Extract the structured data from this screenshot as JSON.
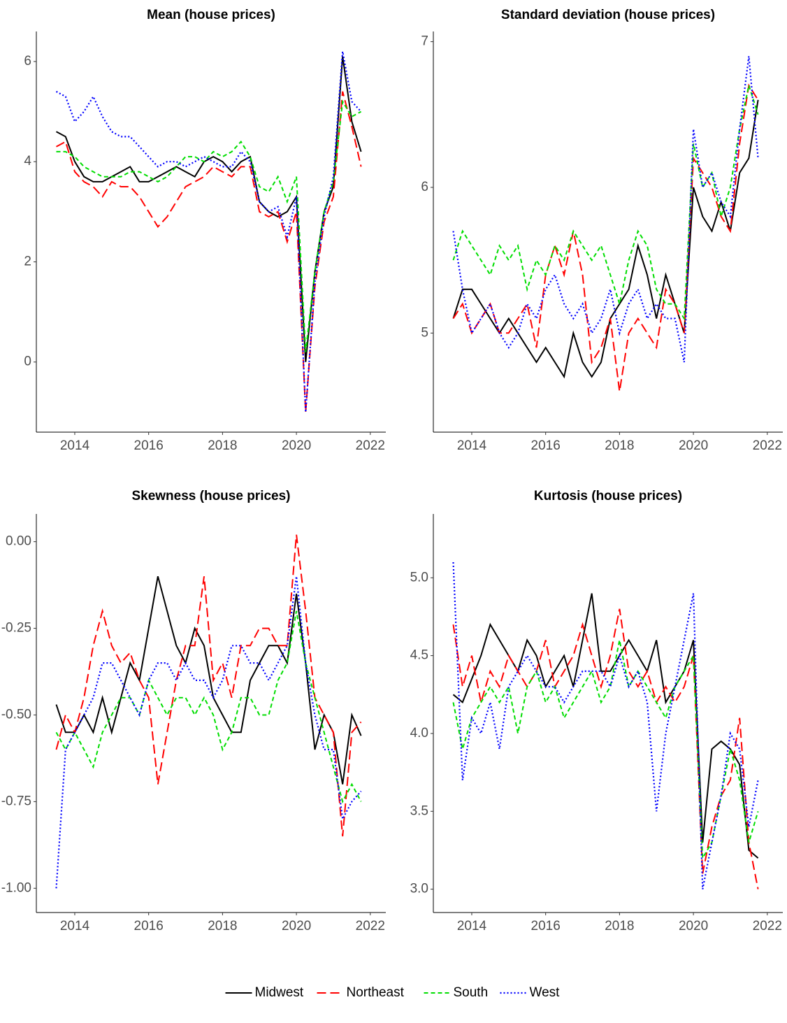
{
  "chart_data": [
    {
      "type": "line",
      "title": "Mean (house prices)",
      "x": [
        2013.5,
        2013.75,
        2014,
        2014.25,
        2014.5,
        2014.75,
        2015,
        2015.25,
        2015.5,
        2015.75,
        2016,
        2016.25,
        2016.5,
        2016.75,
        2017,
        2017.25,
        2017.5,
        2017.75,
        2018,
        2018.25,
        2018.5,
        2018.75,
        2019,
        2019.25,
        2019.5,
        2019.75,
        2020,
        2020.25,
        2020.5,
        2020.75,
        2021,
        2021.25,
        2021.5,
        2021.75
      ],
      "xlim": [
        2012.96,
        2022.42
      ],
      "xticks": [
        2014,
        2016,
        2018,
        2020,
        2022
      ],
      "ylim": [
        -1.4,
        6.6
      ],
      "yticks": [
        0,
        2,
        4,
        6
      ],
      "series": [
        {
          "values": [
            4.6,
            4.5,
            4.0,
            3.7,
            3.6,
            3.6,
            3.7,
            3.8,
            3.9,
            3.6,
            3.6,
            3.7,
            3.8,
            3.9,
            3.8,
            3.7,
            4.0,
            4.1,
            4.0,
            3.8,
            4.0,
            4.1,
            3.2,
            3.0,
            2.9,
            3.0,
            3.3,
            0.0,
            1.8,
            3.0,
            3.5,
            6.1,
            4.8,
            4.2
          ]
        },
        {
          "values": [
            4.3,
            4.4,
            3.8,
            3.6,
            3.5,
            3.3,
            3.6,
            3.5,
            3.5,
            3.3,
            3.0,
            2.7,
            2.9,
            3.2,
            3.5,
            3.6,
            3.7,
            3.9,
            3.8,
            3.7,
            3.9,
            3.9,
            3.0,
            2.9,
            3.0,
            2.4,
            3.0,
            -1.0,
            1.5,
            2.8,
            3.3,
            5.4,
            4.7,
            3.9
          ]
        },
        {
          "values": [
            4.2,
            4.2,
            4.1,
            3.9,
            3.8,
            3.7,
            3.7,
            3.7,
            3.8,
            3.8,
            3.7,
            3.6,
            3.7,
            3.9,
            4.1,
            4.1,
            4.0,
            4.2,
            4.1,
            4.2,
            4.4,
            4.1,
            3.5,
            3.4,
            3.7,
            3.2,
            3.7,
            0.2,
            1.8,
            3.0,
            3.6,
            5.2,
            4.9,
            5.0
          ]
        },
        {
          "values": [
            5.4,
            5.3,
            4.8,
            5.0,
            5.3,
            4.9,
            4.6,
            4.5,
            4.5,
            4.3,
            4.1,
            3.9,
            4.0,
            4.0,
            3.9,
            4.0,
            4.1,
            4.0,
            3.9,
            3.9,
            4.2,
            4.0,
            3.2,
            3.0,
            3.1,
            2.5,
            3.3,
            -1.0,
            1.6,
            2.9,
            3.7,
            6.2,
            5.2,
            5.0
          ]
        }
      ]
    },
    {
      "type": "line",
      "title": "Standard deviation (house prices)",
      "x": [
        2013.5,
        2013.75,
        2014,
        2014.25,
        2014.5,
        2014.75,
        2015,
        2015.25,
        2015.5,
        2015.75,
        2016,
        2016.25,
        2016.5,
        2016.75,
        2017,
        2017.25,
        2017.5,
        2017.75,
        2018,
        2018.25,
        2018.5,
        2018.75,
        2019,
        2019.25,
        2019.5,
        2019.75,
        2020,
        2020.25,
        2020.5,
        2020.75,
        2021,
        2021.25,
        2021.5,
        2021.75
      ],
      "xlim": [
        2012.96,
        2022.42
      ],
      "xticks": [
        2014,
        2016,
        2018,
        2020,
        2022
      ],
      "ylim": [
        4.32,
        7.07
      ],
      "yticks": [
        5,
        6,
        7
      ],
      "series": [
        {
          "values": [
            5.1,
            5.3,
            5.3,
            5.2,
            5.1,
            5.0,
            5.1,
            5.0,
            4.9,
            4.8,
            4.9,
            4.8,
            4.7,
            5.0,
            4.8,
            4.7,
            4.8,
            5.1,
            5.2,
            5.3,
            5.6,
            5.4,
            5.1,
            5.4,
            5.2,
            5.0,
            6.0,
            5.8,
            5.7,
            5.9,
            5.7,
            6.1,
            6.2,
            6.6
          ]
        },
        {
          "values": [
            5.1,
            5.2,
            5.0,
            5.1,
            5.2,
            5.0,
            5.0,
            5.1,
            5.2,
            4.9,
            5.4,
            5.6,
            5.4,
            5.7,
            5.4,
            4.8,
            4.9,
            5.1,
            4.6,
            5.0,
            5.1,
            5.0,
            4.9,
            5.3,
            5.2,
            5.0,
            6.2,
            6.1,
            6.0,
            5.8,
            5.7,
            6.3,
            6.7,
            6.6
          ]
        },
        {
          "values": [
            5.5,
            5.7,
            5.6,
            5.5,
            5.4,
            5.6,
            5.5,
            5.6,
            5.3,
            5.5,
            5.4,
            5.6,
            5.5,
            5.7,
            5.6,
            5.5,
            5.6,
            5.4,
            5.2,
            5.5,
            5.7,
            5.6,
            5.3,
            5.2,
            5.2,
            5.1,
            6.3,
            6.0,
            6.1,
            5.8,
            6.0,
            6.4,
            6.7,
            6.5
          ]
        },
        {
          "values": [
            5.7,
            5.3,
            5.0,
            5.1,
            5.2,
            5.0,
            4.9,
            5.0,
            5.2,
            5.1,
            5.3,
            5.4,
            5.2,
            5.1,
            5.2,
            5.0,
            5.1,
            5.3,
            5.0,
            5.2,
            5.3,
            5.1,
            5.2,
            5.1,
            5.1,
            4.8,
            6.4,
            6.0,
            6.1,
            5.9,
            5.8,
            6.4,
            6.9,
            6.2
          ]
        }
      ]
    },
    {
      "type": "line",
      "title": "Skewness (house prices)",
      "x": [
        2013.5,
        2013.75,
        2014,
        2014.25,
        2014.5,
        2014.75,
        2015,
        2015.25,
        2015.5,
        2015.75,
        2016,
        2016.25,
        2016.5,
        2016.75,
        2017,
        2017.25,
        2017.5,
        2017.75,
        2018,
        2018.25,
        2018.5,
        2018.75,
        2019,
        2019.25,
        2019.5,
        2019.75,
        2020,
        2020.25,
        2020.5,
        2020.75,
        2021,
        2021.25,
        2021.5,
        2021.75
      ],
      "xlim": [
        2012.96,
        2022.42
      ],
      "xticks": [
        2014,
        2016,
        2018,
        2020,
        2022
      ],
      "ylim": [
        -1.07,
        0.08
      ],
      "yticks": [
        {
          "value": 0,
          "label": "0.00"
        },
        -0.25,
        {
          "value": -0.5,
          "label": "-0.50"
        },
        -0.75,
        {
          "value": -1,
          "label": "-1.00"
        }
      ],
      "series": [
        {
          "values": [
            -0.47,
            -0.55,
            -0.55,
            -0.5,
            -0.55,
            -0.45,
            -0.55,
            -0.45,
            -0.35,
            -0.4,
            -0.25,
            -0.1,
            -0.2,
            -0.3,
            -0.35,
            -0.25,
            -0.3,
            -0.45,
            -0.5,
            -0.55,
            -0.55,
            -0.4,
            -0.35,
            -0.3,
            -0.3,
            -0.35,
            -0.15,
            -0.35,
            -0.6,
            -0.5,
            -0.55,
            -0.7,
            -0.5,
            -0.56
          ]
        },
        {
          "values": [
            -0.6,
            -0.5,
            -0.55,
            -0.45,
            -0.3,
            -0.2,
            -0.3,
            -0.35,
            -0.32,
            -0.4,
            -0.45,
            -0.7,
            -0.55,
            -0.4,
            -0.3,
            -0.3,
            -0.1,
            -0.4,
            -0.35,
            -0.45,
            -0.3,
            -0.3,
            -0.25,
            -0.25,
            -0.3,
            -0.3,
            0.02,
            -0.2,
            -0.45,
            -0.5,
            -0.55,
            -0.85,
            -0.55,
            -0.52
          ]
        },
        {
          "values": [
            -0.55,
            -0.6,
            -0.55,
            -0.6,
            -0.65,
            -0.55,
            -0.5,
            -0.45,
            -0.45,
            -0.5,
            -0.4,
            -0.45,
            -0.5,
            -0.45,
            -0.45,
            -0.5,
            -0.45,
            -0.5,
            -0.6,
            -0.55,
            -0.45,
            -0.45,
            -0.5,
            -0.5,
            -0.4,
            -0.35,
            -0.2,
            -0.35,
            -0.45,
            -0.55,
            -0.65,
            -0.75,
            -0.7,
            -0.75
          ]
        },
        {
          "values": [
            -1.0,
            -0.6,
            -0.55,
            -0.5,
            -0.45,
            -0.35,
            -0.35,
            -0.4,
            -0.45,
            -0.5,
            -0.4,
            -0.35,
            -0.35,
            -0.4,
            -0.35,
            -0.4,
            -0.4,
            -0.45,
            -0.4,
            -0.3,
            -0.3,
            -0.35,
            -0.35,
            -0.4,
            -0.35,
            -0.3,
            -0.1,
            -0.35,
            -0.5,
            -0.6,
            -0.6,
            -0.8,
            -0.75,
            -0.72
          ]
        }
      ]
    },
    {
      "type": "line",
      "title": "Kurtosis (house prices)",
      "x": [
        2013.5,
        2013.75,
        2014,
        2014.25,
        2014.5,
        2014.75,
        2015,
        2015.25,
        2015.5,
        2015.75,
        2016,
        2016.25,
        2016.5,
        2016.75,
        2017,
        2017.25,
        2017.5,
        2017.75,
        2018,
        2018.25,
        2018.5,
        2018.75,
        2019,
        2019.25,
        2019.5,
        2019.75,
        2020,
        2020.25,
        2020.5,
        2020.75,
        2021,
        2021.25,
        2021.5,
        2021.75
      ],
      "xlim": [
        2012.96,
        2022.42
      ],
      "xticks": [
        2014,
        2016,
        2018,
        2020,
        2022
      ],
      "ylim": [
        2.85,
        5.41
      ],
      "yticks": [
        {
          "value": 3,
          "label": "3.0"
        },
        3.5,
        {
          "value": 4,
          "label": "4.0"
        },
        4.5,
        {
          "value": 5,
          "label": "5.0"
        }
      ],
      "series": [
        {
          "values": [
            4.25,
            4.2,
            4.35,
            4.5,
            4.7,
            4.6,
            4.5,
            4.4,
            4.6,
            4.5,
            4.3,
            4.4,
            4.5,
            4.3,
            4.6,
            4.9,
            4.4,
            4.4,
            4.5,
            4.6,
            4.5,
            4.4,
            4.6,
            4.2,
            4.3,
            4.4,
            4.6,
            3.3,
            3.9,
            3.95,
            3.9,
            3.8,
            3.25,
            3.2
          ]
        },
        {
          "values": [
            4.7,
            4.3,
            4.5,
            4.2,
            4.4,
            4.3,
            4.5,
            4.4,
            4.3,
            4.4,
            4.6,
            4.3,
            4.4,
            4.5,
            4.7,
            4.5,
            4.3,
            4.5,
            4.8,
            4.4,
            4.3,
            4.4,
            4.2,
            4.3,
            4.2,
            4.3,
            4.5,
            3.1,
            3.4,
            3.6,
            3.7,
            4.1,
            3.3,
            3.0
          ]
        },
        {
          "values": [
            4.2,
            3.9,
            4.1,
            4.2,
            4.3,
            4.2,
            4.3,
            4.0,
            4.3,
            4.4,
            4.2,
            4.3,
            4.1,
            4.2,
            4.3,
            4.4,
            4.2,
            4.3,
            4.6,
            4.3,
            4.4,
            4.3,
            4.2,
            4.1,
            4.3,
            4.4,
            4.5,
            3.2,
            3.3,
            3.6,
            3.9,
            3.7,
            3.3,
            3.5
          ]
        },
        {
          "values": [
            5.1,
            3.7,
            4.1,
            4.0,
            4.2,
            3.9,
            4.3,
            4.4,
            4.5,
            4.4,
            4.3,
            4.3,
            4.2,
            4.3,
            4.4,
            4.4,
            4.4,
            4.3,
            4.5,
            4.3,
            4.4,
            4.2,
            3.5,
            4.0,
            4.3,
            4.6,
            4.9,
            3.0,
            3.3,
            3.6,
            4.0,
            3.9,
            3.4,
            3.7
          ]
        }
      ]
    }
  ],
  "legend": [
    {
      "name": "Midwest",
      "color": "#000000",
      "dash": "solid"
    },
    {
      "name": "Northeast",
      "color": "#ff0000",
      "dash": "longdash"
    },
    {
      "name": "South",
      "color": "#00dd00",
      "dash": "dashed"
    },
    {
      "name": "West",
      "color": "#0000ff",
      "dash": "dotted"
    }
  ]
}
